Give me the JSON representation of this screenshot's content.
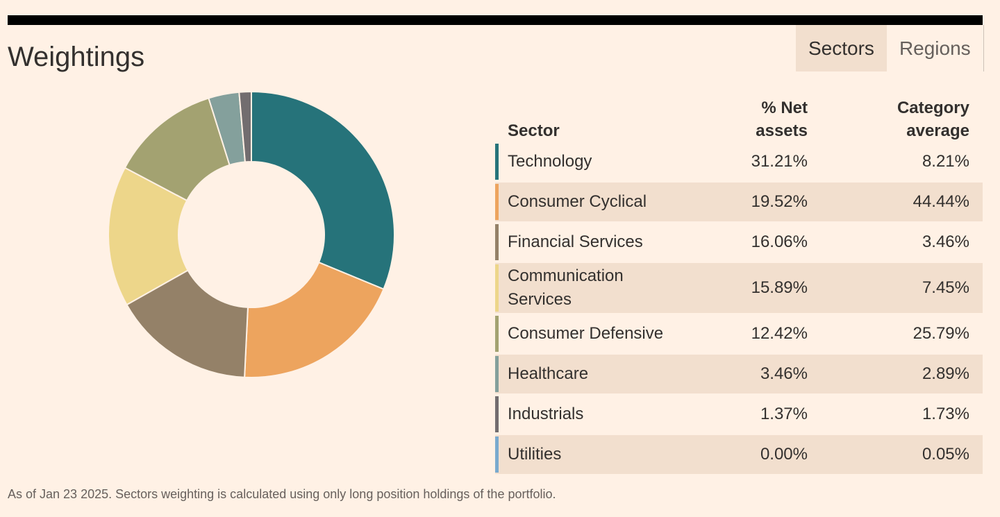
{
  "title": "Weightings",
  "tabs": [
    "Sectors",
    "Regions"
  ],
  "chart_data": {
    "type": "pie",
    "categories": [
      "Technology",
      "Consumer Cyclical",
      "Financial Services",
      "Communication Services",
      "Consumer Defensive",
      "Healthcare",
      "Industrials",
      "Utilities"
    ],
    "values": [
      31.21,
      19.52,
      16.06,
      15.89,
      12.42,
      3.46,
      1.37,
      0.0
    ],
    "value_labels": [
      "31.21%",
      "19.52%",
      "16.06%",
      "15.89%",
      "12.42%",
      "3.46%",
      "1.37%",
      "0.00%"
    ],
    "colors": [
      "#26737a",
      "#eda45e",
      "#948168",
      "#edd68a",
      "#a3a271",
      "#84a09c",
      "#726d6f",
      "#7aaace"
    ]
  },
  "table": {
    "headers": [
      "Sector",
      "% Net assets",
      "Category average"
    ],
    "category_average": [
      "8.21%",
      "44.44%",
      "3.46%",
      "7.45%",
      "25.79%",
      "2.89%",
      "1.73%",
      "0.05%"
    ]
  },
  "footnote": "As of Jan 23 2025. Sectors weighting is calculated using only long position holdings of the portfolio."
}
